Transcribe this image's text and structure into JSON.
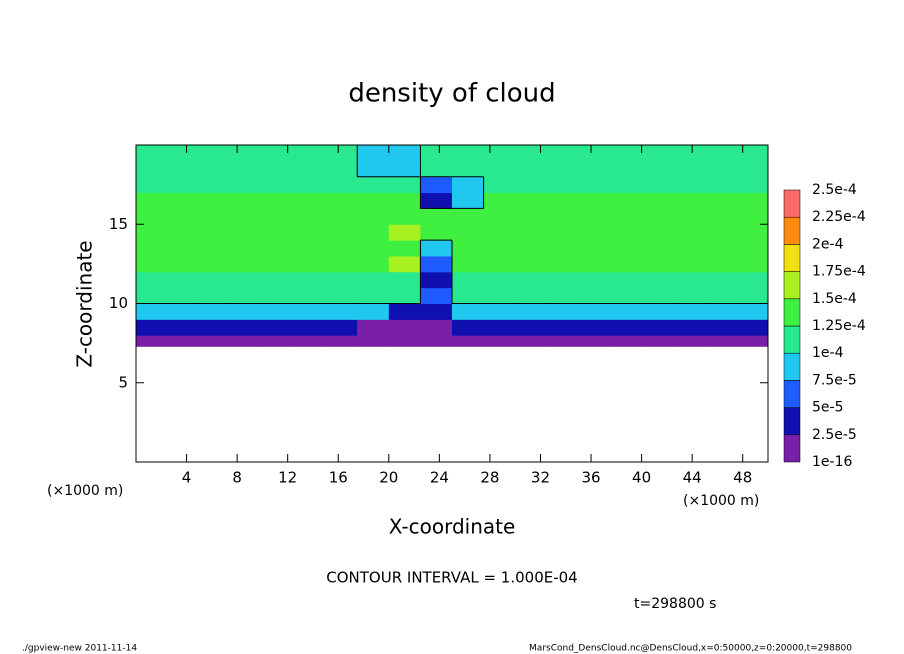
{
  "chart_data": {
    "type": "contour",
    "title": "density of cloud",
    "x_label": "X-coordinate",
    "y_label": "Z-coordinate",
    "x_unit": "(×1000 m)",
    "y_unit": "(×1000 m)",
    "contour_interval_text": "CONTOUR INTERVAL = 1.000E-04",
    "contour_interval": 0.0001,
    "time_text": "t=298800 s",
    "footer_left": "./gpview-new   2011-11-14",
    "footer_right": "MarsCond_DensCloud.nc@DensCloud,x=0:50000,z=0:20000,t=298800",
    "xlim": [
      0,
      50
    ],
    "ylim": [
      0,
      20
    ],
    "xticks": [
      4,
      8,
      12,
      16,
      20,
      24,
      28,
      32,
      36,
      40,
      44,
      48
    ],
    "yticks": [
      5,
      10,
      15
    ],
    "colorbar": {
      "levels": [
        {
          "value": 1e-16,
          "label": "1e-16"
        },
        {
          "value": 2.5e-05,
          "label": "2.5e-5"
        },
        {
          "value": 5e-05,
          "label": "5e-5"
        },
        {
          "value": 7.5e-05,
          "label": "7.5e-5"
        },
        {
          "value": 0.0001,
          "label": "1e-4"
        },
        {
          "value": 0.000125,
          "label": "1.25e-4"
        },
        {
          "value": 0.00015,
          "label": "1.5e-4"
        },
        {
          "value": 0.000175,
          "label": "1.75e-4"
        },
        {
          "value": 0.0002,
          "label": "2e-4"
        },
        {
          "value": 0.000225,
          "label": "2.25e-4"
        },
        {
          "value": 0.00025,
          "label": "2.5e-4"
        }
      ],
      "colors": [
        "#7a1fa8",
        "#1010b0",
        "#1e5cff",
        "#20c8f0",
        "#28e890",
        "#40f040",
        "#a8f020",
        "#f0e010",
        "#ff8a10",
        "#ff6a6a"
      ]
    },
    "field": {
      "x_edges": [
        0,
        2.5,
        5,
        7.5,
        10,
        12.5,
        15,
        17.5,
        20,
        22.5,
        25,
        27.5,
        30,
        32.5,
        35,
        37.5,
        40,
        42.5,
        45,
        47.5,
        50
      ],
      "z_edges": [
        7.3,
        8,
        9,
        10,
        11,
        12,
        13,
        14,
        15,
        16,
        17,
        18,
        19,
        20
      ],
      "values": [
        [
          1e-05,
          1e-05,
          1e-05,
          1e-05,
          1e-05,
          1e-05,
          1e-05,
          1e-05,
          1e-05,
          1e-05,
          1e-05,
          1e-05,
          1e-05,
          1e-05,
          1e-05,
          1e-05,
          1e-05,
          1e-05,
          1e-05,
          1e-05
        ],
        [
          4e-05,
          4e-05,
          4e-05,
          4e-05,
          4e-05,
          4e-05,
          4e-05,
          1e-05,
          1e-05,
          1e-05,
          4e-05,
          4e-05,
          4e-05,
          4e-05,
          4e-05,
          4e-05,
          4e-05,
          4e-05,
          4e-05,
          4e-05
        ],
        [
          8e-05,
          8e-05,
          8e-05,
          8e-05,
          8e-05,
          8e-05,
          8e-05,
          8e-05,
          4e-05,
          4e-05,
          8e-05,
          8e-05,
          8e-05,
          8e-05,
          8e-05,
          8e-05,
          8e-05,
          8e-05,
          8e-05,
          8e-05
        ],
        [
          0.00011,
          0.00011,
          0.00011,
          0.00011,
          0.00011,
          0.00011,
          0.00011,
          0.00011,
          0.00011,
          6e-05,
          0.00011,
          0.00011,
          0.00011,
          0.00011,
          0.00011,
          0.00011,
          0.00011,
          0.00011,
          0.00011,
          0.00011
        ],
        [
          0.00012,
          0.00012,
          0.00012,
          0.00012,
          0.00012,
          0.00012,
          0.00012,
          0.00012,
          0.00012,
          4e-05,
          0.00012,
          0.00012,
          0.00012,
          0.00012,
          0.00012,
          0.00012,
          0.00012,
          0.00012,
          0.00012,
          0.00012
        ],
        [
          0.00013,
          0.00013,
          0.00013,
          0.00013,
          0.00013,
          0.00013,
          0.00013,
          0.00013,
          0.00016,
          6e-05,
          0.00013,
          0.00013,
          0.00013,
          0.00013,
          0.00013,
          0.00013,
          0.00013,
          0.00013,
          0.00013,
          0.00013
        ],
        [
          0.00013,
          0.00013,
          0.00013,
          0.00013,
          0.00013,
          0.00013,
          0.00013,
          0.00013,
          0.00013,
          8e-05,
          0.00013,
          0.00013,
          0.00013,
          0.00013,
          0.00013,
          0.00013,
          0.00013,
          0.00013,
          0.00013,
          0.00013
        ],
        [
          0.00013,
          0.00013,
          0.00013,
          0.00013,
          0.00013,
          0.00013,
          0.00013,
          0.00013,
          0.000155,
          0.00013,
          0.00013,
          0.00013,
          0.00013,
          0.00013,
          0.00013,
          0.00013,
          0.00013,
          0.00013,
          0.00013,
          0.00013
        ],
        [
          0.000135,
          0.000135,
          0.000135,
          0.000135,
          0.000135,
          0.000135,
          0.000135,
          0.000135,
          0.000135,
          0.000135,
          0.000135,
          0.000135,
          0.000135,
          0.000135,
          0.000135,
          0.000135,
          0.000135,
          0.000135,
          0.000135,
          0.000135
        ],
        [
          0.00013,
          0.00013,
          0.00013,
          0.00013,
          0.00013,
          0.00013,
          0.00013,
          0.00013,
          0.00013,
          3e-05,
          8e-05,
          0.00013,
          0.00013,
          0.00013,
          0.00013,
          0.00013,
          0.00013,
          0.00013,
          0.00013,
          0.00013
        ],
        [
          0.00012,
          0.00012,
          0.00012,
          0.00012,
          0.00012,
          0.00012,
          0.00012,
          0.00012,
          0.00012,
          6e-05,
          8e-05,
          0.00012,
          0.00012,
          0.00012,
          0.00012,
          0.00012,
          0.00012,
          0.00012,
          0.00012,
          0.00012
        ],
        [
          0.000115,
          0.000115,
          0.000115,
          0.000115,
          0.000115,
          0.000115,
          0.000115,
          8e-05,
          8e-05,
          0.000115,
          0.000115,
          0.000115,
          0.000115,
          0.000115,
          0.000115,
          0.000115,
          0.000115,
          0.000115,
          0.000115,
          0.000115
        ],
        [
          0.00011,
          0.00011,
          0.00011,
          0.00011,
          0.00011,
          0.00011,
          0.00011,
          8e-05,
          8e-05,
          0.00011,
          0.00011,
          0.00011,
          0.00011,
          0.00011,
          0.00011,
          0.00011,
          0.00011,
          0.00011,
          0.00011,
          0.00011
        ]
      ]
    }
  }
}
